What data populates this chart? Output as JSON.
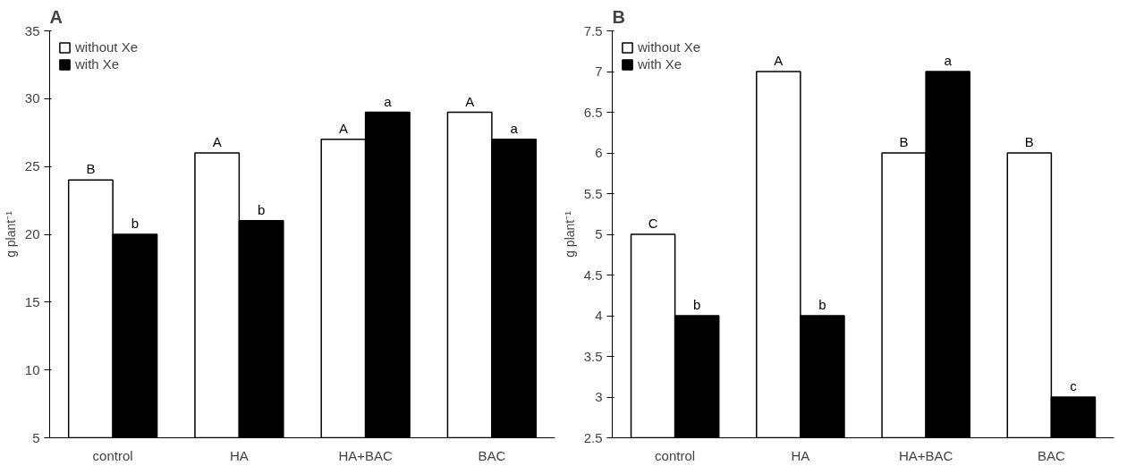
{
  "chart_data": [
    {
      "type": "bar",
      "title": "A",
      "ylabel": "g plant⁻¹",
      "categories": [
        "control",
        "HA",
        "HA+BAC",
        "BAC"
      ],
      "series": [
        {
          "name": "without Xe",
          "color": "#ffffff",
          "values": [
            24,
            26,
            27,
            29
          ]
        },
        {
          "name": "with Xe",
          "color": "#000000",
          "values": [
            20,
            21,
            29,
            27
          ]
        }
      ],
      "ylim": [
        5,
        35
      ],
      "yticks": [
        5,
        10,
        15,
        20,
        25,
        30,
        35
      ],
      "grid": false,
      "legend": "top left",
      "annotations": [
        {
          "text": "B",
          "x": "control",
          "y": 24
        },
        {
          "text": "b",
          "x": "control",
          "y": 20
        },
        {
          "text": "A",
          "x": "HA",
          "y": 26
        },
        {
          "text": "b",
          "x": "HA",
          "y": 21
        },
        {
          "text": "A",
          "x": "HA+BAC",
          "y": 27
        },
        {
          "text": "a",
          "x": "HA+BAC",
          "y": 29
        },
        {
          "text": "A",
          "x": "BAC",
          "y": 29
        },
        {
          "text": "a",
          "x": "BAC",
          "y": 27
        }
      ]
    },
    {
      "type": "bar",
      "title": "B",
      "ylabel": "g plant⁻¹",
      "categories": [
        "control",
        "HA",
        "HA+BAC",
        "BAC"
      ],
      "series": [
        {
          "name": "without Xe",
          "color": "#ffffff",
          "values": [
            5,
            7,
            6,
            6
          ]
        },
        {
          "name": "with Xe",
          "color": "#000000",
          "values": [
            4,
            4,
            7,
            3
          ]
        }
      ],
      "ylim": [
        2.5,
        7.5
      ],
      "yticks": [
        2.5,
        3,
        3.5,
        4,
        4.5,
        5,
        5.5,
        6,
        6.5,
        7,
        7.5
      ],
      "grid": false,
      "legend": "top left",
      "annotations": [
        {
          "text": "C",
          "x": "control",
          "y": 5
        },
        {
          "text": "b",
          "x": "control",
          "y": 4
        },
        {
          "text": "A",
          "x": "HA",
          "y": 7
        },
        {
          "text": "b",
          "x": "HA",
          "y": 4
        },
        {
          "text": "B",
          "x": "HA+BAC",
          "y": 6
        },
        {
          "text": "a",
          "x": "HA+BAC",
          "y": 7
        },
        {
          "text": "B",
          "x": "BAC",
          "y": 6
        },
        {
          "text": "c",
          "x": "BAC",
          "y": 3
        }
      ]
    }
  ]
}
